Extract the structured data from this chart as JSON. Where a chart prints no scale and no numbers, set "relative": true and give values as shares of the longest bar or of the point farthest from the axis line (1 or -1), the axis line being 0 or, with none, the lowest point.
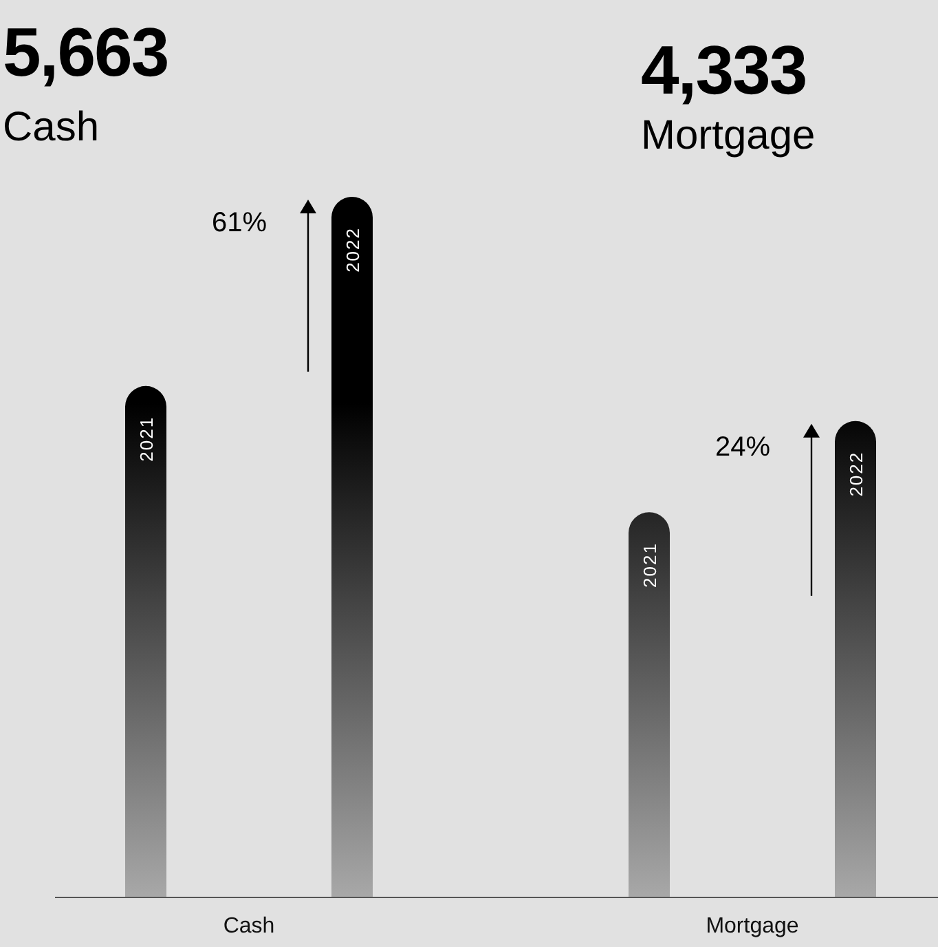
{
  "chart_data": {
    "type": "bar",
    "relative": true,
    "categories": [
      "Cash",
      "Mortgage"
    ],
    "series": [
      {
        "name": "2021",
        "color": "#000000",
        "values": [
          0.73,
          0.55
        ]
      },
      {
        "name": "2022",
        "color": "#000000",
        "values": [
          1,
          0.68
        ]
      }
    ],
    "annotations": [
      "5,663",
      "Cash",
      "4,333",
      "Mortgage",
      "61%",
      "24%"
    ],
    "legend": false
  }
}
